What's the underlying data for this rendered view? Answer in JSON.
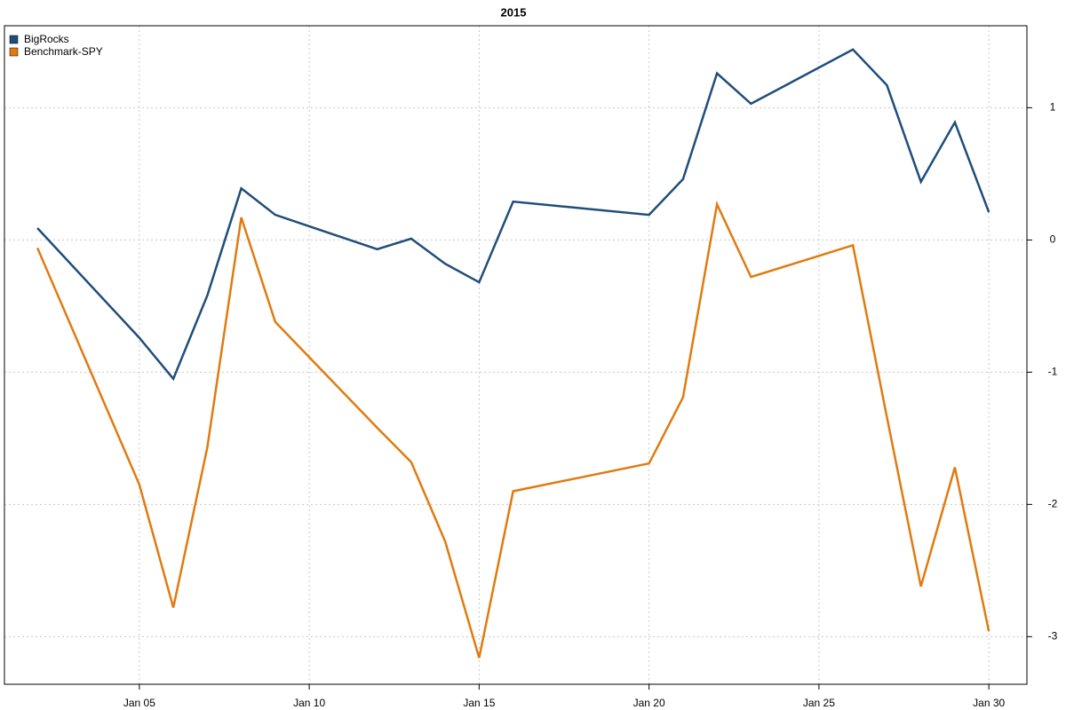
{
  "chart_data": {
    "type": "line",
    "title": "2015",
    "x": [
      2,
      5,
      6,
      7,
      8,
      9,
      12,
      13,
      14,
      15,
      16,
      20,
      21,
      22,
      23,
      26,
      27,
      28,
      29,
      30
    ],
    "series": [
      {
        "name": "BigRocks",
        "color": "#1f4e7a",
        "values": [
          0.09,
          -0.74,
          -1.05,
          -0.42,
          0.39,
          0.19,
          -0.07,
          0.01,
          -0.18,
          -0.32,
          0.29,
          0.19,
          0.46,
          1.26,
          1.03,
          1.44,
          1.17,
          0.44,
          0.89,
          0.21
        ]
      },
      {
        "name": "Benchmark-SPY",
        "color": "#e07b10",
        "values": [
          -0.06,
          -1.85,
          -2.78,
          -1.57,
          0.17,
          -0.62,
          -1.42,
          -1.68,
          -2.28,
          -3.16,
          -1.9,
          -1.69,
          -1.19,
          0.27,
          -0.28,
          -0.04,
          -1.34,
          -2.62,
          -1.72,
          -2.96
        ]
      }
    ],
    "xlim": [
      1.03,
      31.12
    ],
    "xticks": [
      {
        "value": 5,
        "label": "Jan 05"
      },
      {
        "value": 10,
        "label": "Jan 10"
      },
      {
        "value": 15,
        "label": "Jan 15"
      },
      {
        "value": 20,
        "label": "Jan 20"
      },
      {
        "value": 25,
        "label": "Jan 25"
      },
      {
        "value": 30,
        "label": "Jan 30"
      }
    ],
    "ylim": [
      -3.36,
      1.62
    ],
    "yticks": [
      -3,
      -2,
      -1,
      0,
      1
    ],
    "grid": true,
    "legend": "top-left"
  }
}
